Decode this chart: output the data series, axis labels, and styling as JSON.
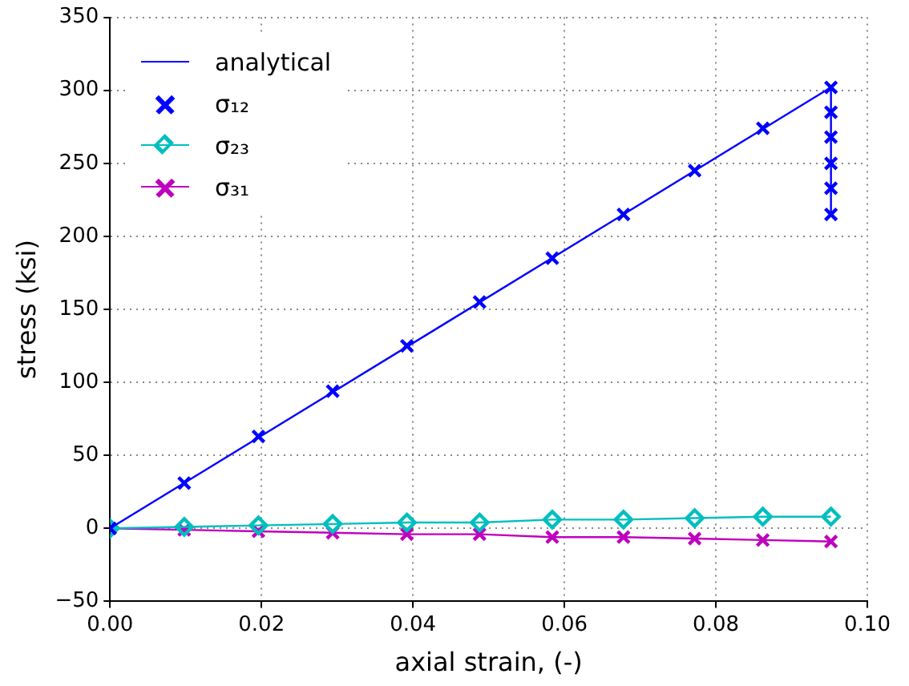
{
  "chart_data": {
    "type": "line",
    "xlabel": "axial strain, (-)",
    "ylabel": "stress (ksi)",
    "xlim": [
      0,
      0.1
    ],
    "xticks": [
      {
        "value": 0,
        "label": "0.00"
      },
      {
        "value": 0.02,
        "label": "0.02"
      },
      {
        "value": 0.04,
        "label": "0.04"
      },
      {
        "value": 0.06,
        "label": "0.06"
      },
      {
        "value": 0.08,
        "label": "0.08"
      },
      {
        "value": 0.1,
        "label": "0.10"
      }
    ],
    "ylim": [
      -50,
      350
    ],
    "yticks": [
      {
        "value": -50,
        "label": "−50"
      },
      0,
      50,
      100,
      150,
      200,
      250,
      300,
      350
    ],
    "grid": true,
    "legend": "top left",
    "series": [
      {
        "name": "analytical",
        "marker": "none",
        "color": "#0000ff",
        "x": [
          0,
          0.0952,
          0.0952
        ],
        "values": [
          0,
          302,
          215
        ]
      },
      {
        "name": "σ₁₂",
        "type": "scatter",
        "marker": "cross",
        "color": "#0000ff",
        "x": [
          0,
          0.0098,
          0.0196,
          0.0294,
          0.0392,
          0.0488,
          0.0584,
          0.0678,
          0.0772,
          0.0862,
          0.0952,
          0.0952,
          0.0952,
          0.0952,
          0.0952,
          0.0952
        ],
        "values": [
          0,
          31,
          63,
          94,
          125,
          155,
          185,
          215,
          245,
          274,
          302,
          285,
          268,
          250,
          233,
          215
        ]
      },
      {
        "name": "σ₂₃",
        "marker": "diamond",
        "color": "#00bfbf",
        "x": [
          0,
          0.0098,
          0.0196,
          0.0294,
          0.0392,
          0.0488,
          0.0584,
          0.0678,
          0.0772,
          0.0862,
          0.0952
        ],
        "values": [
          0,
          1,
          2,
          3,
          4,
          4,
          6,
          6,
          7,
          8,
          8
        ]
      },
      {
        "name": "σ₃₁",
        "marker": "cross",
        "color": "#bf00bf",
        "x": [
          0,
          0.0098,
          0.0196,
          0.0294,
          0.0392,
          0.0488,
          0.0584,
          0.0678,
          0.0772,
          0.0862,
          0.0952
        ],
        "values": [
          0,
          -1,
          -2,
          -3,
          -4,
          -4,
          -6,
          -6,
          -7,
          -8,
          -9
        ]
      }
    ]
  }
}
